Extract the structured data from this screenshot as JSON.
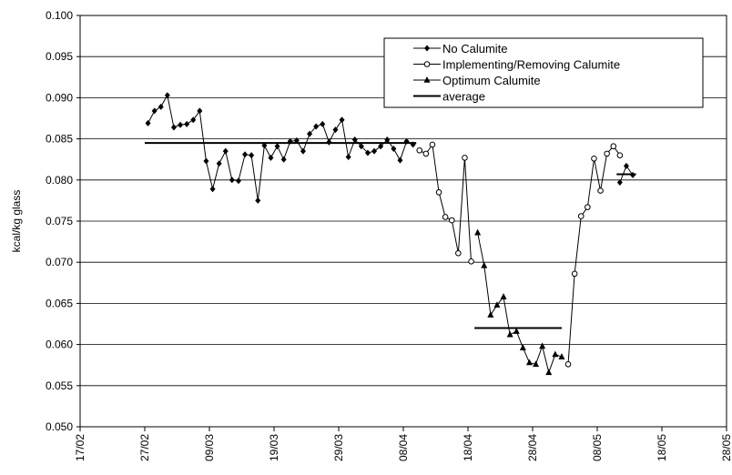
{
  "chart_data": {
    "type": "line",
    "title": "",
    "xlabel": "",
    "ylabel": "kcal/kg glass",
    "ylim": [
      0.05,
      0.1
    ],
    "yticks": [
      0.05,
      0.055,
      0.06,
      0.065,
      0.07,
      0.075,
      0.08,
      0.085,
      0.09,
      0.095,
      0.1
    ],
    "ytick_labels": [
      "0.050",
      "0.055",
      "0.060",
      "0.065",
      "0.070",
      "0.075",
      "0.080",
      "0.085",
      "0.090",
      "0.095",
      "0.100"
    ],
    "xticks": [
      "17/02",
      "27/02",
      "09/03",
      "19/03",
      "29/03",
      "08/04",
      "18/04",
      "28/04",
      "08/05",
      "18/05",
      "28/05"
    ],
    "grid": "horizontal",
    "legend_position": "top-right",
    "series": [
      {
        "name": "No Calumite",
        "marker": "diamond",
        "segments": [
          [
            [
              10.5,
              0.0869
            ],
            [
              11.5,
              0.0884
            ],
            [
              12.5,
              0.0889
            ],
            [
              13.5,
              0.0903
            ],
            [
              14.5,
              0.0864
            ],
            [
              15.5,
              0.0867
            ],
            [
              16.5,
              0.0868
            ],
            [
              17.5,
              0.0873
            ],
            [
              18.5,
              0.0884
            ],
            [
              19.5,
              0.0823
            ],
            [
              20.5,
              0.0789
            ],
            [
              21.5,
              0.082
            ],
            [
              22.5,
              0.0835
            ],
            [
              23.5,
              0.08
            ],
            [
              24.5,
              0.0799
            ],
            [
              25.5,
              0.0831
            ],
            [
              26.5,
              0.083
            ],
            [
              27.5,
              0.0775
            ],
            [
              28.5,
              0.0842
            ],
            [
              29.5,
              0.0827
            ],
            [
              30.5,
              0.0841
            ],
            [
              31.5,
              0.0825
            ],
            [
              32.5,
              0.0847
            ],
            [
              33.5,
              0.0848
            ],
            [
              34.5,
              0.0835
            ],
            [
              35.5,
              0.0856
            ],
            [
              36.5,
              0.0865
            ],
            [
              37.5,
              0.0868
            ],
            [
              38.5,
              0.0846
            ],
            [
              39.5,
              0.0861
            ],
            [
              40.5,
              0.0873
            ],
            [
              41.5,
              0.0828
            ],
            [
              42.5,
              0.0849
            ],
            [
              43.5,
              0.0841
            ],
            [
              44.5,
              0.0833
            ],
            [
              45.5,
              0.0835
            ],
            [
              46.5,
              0.0841
            ],
            [
              47.5,
              0.0849
            ],
            [
              48.5,
              0.0838
            ],
            [
              49.5,
              0.0824
            ],
            [
              50.5,
              0.0847
            ],
            [
              51.5,
              0.0843
            ]
          ],
          [
            [
              83.5,
              0.0797
            ],
            [
              84.5,
              0.0817
            ],
            [
              85.5,
              0.0806
            ]
          ]
        ]
      },
      {
        "name": "Implementing/Removing Calumite",
        "marker": "circle",
        "segments": [
          [
            [
              52.5,
              0.0836
            ],
            [
              53.5,
              0.0832
            ],
            [
              54.5,
              0.0843
            ],
            [
              55.5,
              0.0785
            ],
            [
              56.5,
              0.0755
            ],
            [
              57.5,
              0.0751
            ],
            [
              58.5,
              0.0711
            ],
            [
              59.5,
              0.0827
            ],
            [
              60.5,
              0.0701
            ]
          ],
          [
            [
              75.5,
              0.0576
            ],
            [
              76.5,
              0.0686
            ],
            [
              77.5,
              0.0756
            ],
            [
              78.5,
              0.0767
            ],
            [
              79.5,
              0.0826
            ],
            [
              80.5,
              0.0787
            ],
            [
              81.5,
              0.0832
            ],
            [
              82.5,
              0.0841
            ],
            [
              83.5,
              0.083
            ]
          ]
        ]
      },
      {
        "name": "Optimum Calumite",
        "marker": "triangle",
        "segments": [
          [
            [
              61.5,
              0.0736
            ],
            [
              62.5,
              0.0696
            ],
            [
              63.5,
              0.0636
            ],
            [
              64.5,
              0.0648
            ],
            [
              65.5,
              0.0658
            ],
            [
              66.5,
              0.0612
            ],
            [
              67.5,
              0.0616
            ],
            [
              68.5,
              0.0596
            ],
            [
              69.5,
              0.0578
            ],
            [
              70.5,
              0.0576
            ],
            [
              71.5,
              0.0598
            ],
            [
              72.5,
              0.0566
            ],
            [
              73.5,
              0.0588
            ],
            [
              74.5,
              0.0585
            ]
          ]
        ]
      },
      {
        "name": "average",
        "marker": "none",
        "segments": [
          [
            [
              10.0,
              0.0845
            ],
            [
              52.0,
              0.0845
            ]
          ],
          [
            [
              61.0,
              0.062
            ],
            [
              74.5,
              0.062
            ]
          ],
          [
            [
              83.0,
              0.0807
            ],
            [
              86.0,
              0.0807
            ]
          ]
        ]
      }
    ]
  }
}
